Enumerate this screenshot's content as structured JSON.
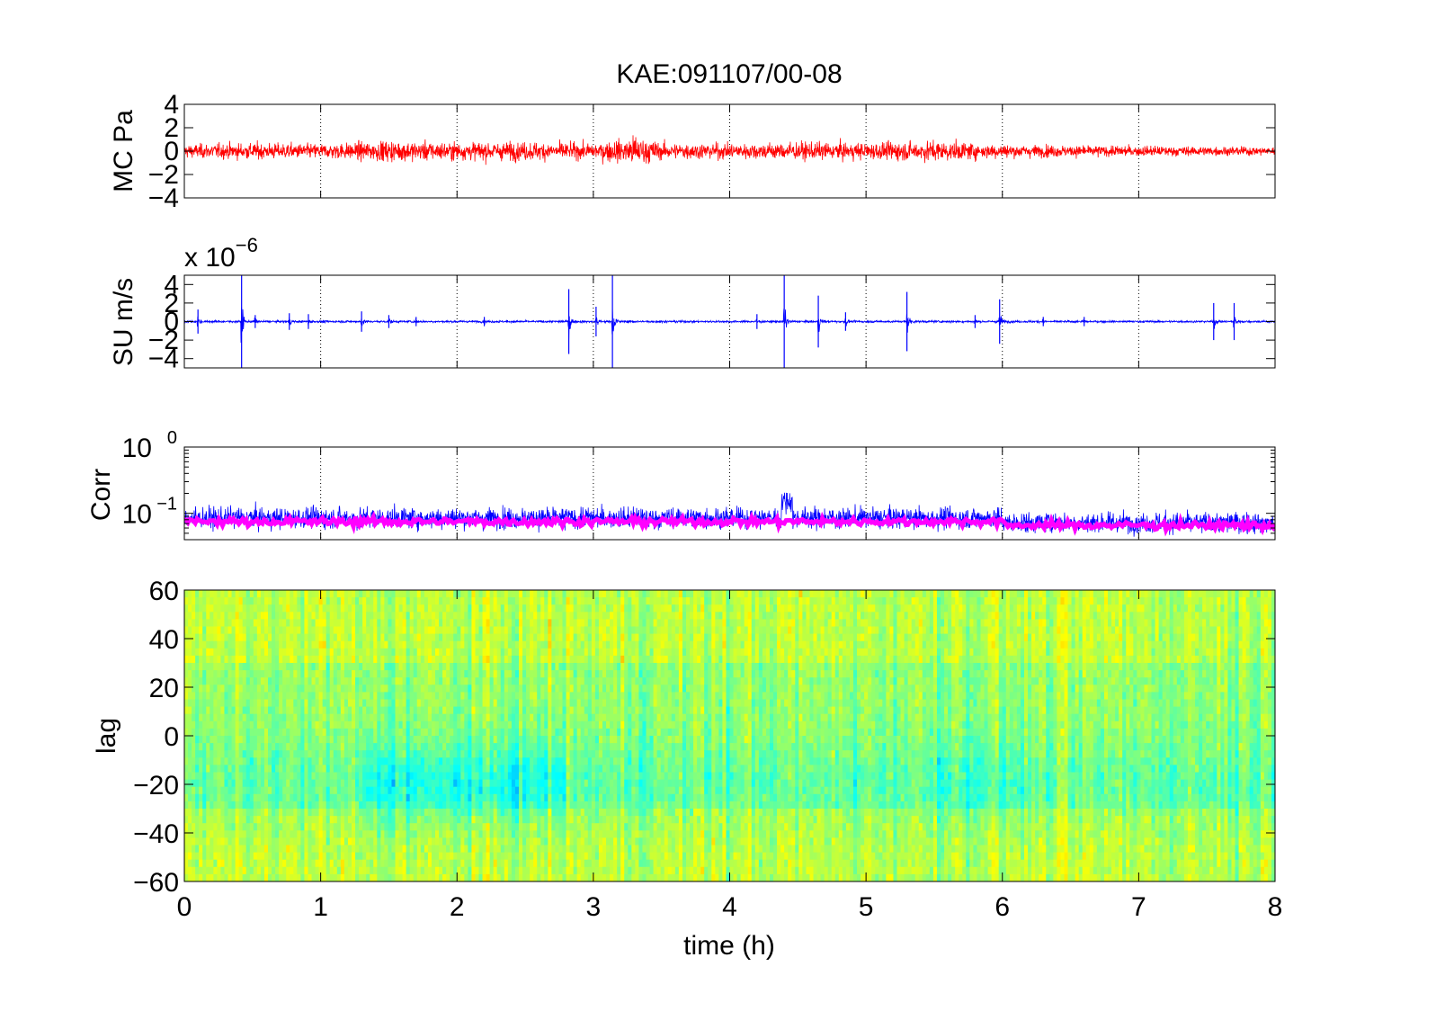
{
  "title": "KAE:091107/00-08",
  "colors": {
    "mc_trace": "#ff0000",
    "su_trace": "#0000ff",
    "corr_trace": "#0000ff",
    "corr_smooth": "#ff00ff",
    "axes": "#000000",
    "grid": "#000000"
  },
  "chart_data": [
    {
      "type": "line",
      "id": "mc",
      "ylabel": "MC Pa",
      "xlim": [
        0,
        8
      ],
      "ylim": [
        -4,
        4
      ],
      "yticks": [
        -4,
        -2,
        0,
        2,
        4
      ],
      "yticklabels": [
        "−4",
        "−2",
        "0",
        "2",
        "4"
      ],
      "xgrid": true,
      "series": [
        {
          "color": "#ff0000",
          "description_of_shape": "continuous noise",
          "x": [
            0,
            0.5,
            1,
            1.5,
            2,
            2.5,
            3,
            3.2,
            3.3,
            3.5,
            4,
            4.5,
            5,
            5.5,
            6,
            6.5,
            7,
            7.5,
            8
          ],
          "envelope": [
            1.3,
            1.6,
            1.4,
            2.0,
            1.7,
            1.8,
            1.5,
            2.3,
            3.1,
            1.6,
            1.5,
            1.7,
            1.6,
            2.0,
            1.3,
            1.1,
            1.0,
            0.9,
            0.8
          ]
        }
      ]
    },
    {
      "type": "line",
      "id": "su",
      "ylabel": "SU m/s",
      "exponent_label": "x 10",
      "exponent": "−6",
      "xlim": [
        0,
        8
      ],
      "ylim": [
        -5,
        5
      ],
      "yticks": [
        -4,
        -2,
        0,
        2,
        4
      ],
      "yticklabels": [
        "−4",
        "−2",
        "0",
        "2",
        "4"
      ],
      "xgrid": true,
      "series": [
        {
          "color": "#0000ff",
          "baseline_noise": 0.12,
          "spikes": [
            {
              "t": 0.1,
              "amp": 1.3
            },
            {
              "t": 0.42,
              "amp": 5.0
            },
            {
              "t": 0.52,
              "amp": 0.7
            },
            {
              "t": 0.77,
              "amp": 0.9
            },
            {
              "t": 0.91,
              "amp": 0.8
            },
            {
              "t": 1.3,
              "amp": 1.1
            },
            {
              "t": 1.5,
              "amp": 0.7
            },
            {
              "t": 1.7,
              "amp": 0.5
            },
            {
              "t": 2.2,
              "amp": 0.5
            },
            {
              "t": 2.82,
              "amp": 3.5
            },
            {
              "t": 3.02,
              "amp": 1.6
            },
            {
              "t": 3.14,
              "amp": 5.0
            },
            {
              "t": 4.2,
              "amp": 0.8
            },
            {
              "t": 4.4,
              "amp": 5.0
            },
            {
              "t": 4.65,
              "amp": 2.8
            },
            {
              "t": 4.85,
              "amp": 1.0
            },
            {
              "t": 5.3,
              "amp": 3.2
            },
            {
              "t": 5.8,
              "amp": 0.7
            },
            {
              "t": 5.98,
              "amp": 2.4
            },
            {
              "t": 6.3,
              "amp": 0.5
            },
            {
              "t": 6.6,
              "amp": 0.5
            },
            {
              "t": 7.55,
              "amp": 2.0
            },
            {
              "t": 7.7,
              "amp": 2.0
            }
          ]
        }
      ]
    },
    {
      "type": "line",
      "id": "corr",
      "ylabel": "Corr",
      "yscale": "log",
      "xlim": [
        0,
        8
      ],
      "ylim": [
        0.04,
        1
      ],
      "yticks": [
        0.1,
        1
      ],
      "yticklabels": [
        {
          "base": "10",
          "exp": "−1"
        },
        {
          "base": "10",
          "exp": "0"
        }
      ],
      "xgrid": true,
      "series": [
        {
          "name": "",
          "color": "#0000ff",
          "style": "raw",
          "level": 0.085
        },
        {
          "name": "",
          "color": "#ff00ff",
          "style": "smoothed",
          "level": 0.075
        }
      ]
    },
    {
      "type": "heatmap",
      "id": "lag",
      "ylabel": "lag",
      "xlabel": "time (h)",
      "xlim": [
        0,
        8
      ],
      "ylim": [
        -60,
        60
      ],
      "xticks": [
        0,
        1,
        2,
        3,
        4,
        5,
        6,
        7,
        8
      ],
      "xticklabels": [
        "0",
        "1",
        "2",
        "3",
        "4",
        "5",
        "6",
        "7",
        "8"
      ],
      "yticks": [
        -60,
        -40,
        -20,
        0,
        20,
        40,
        60
      ],
      "yticklabels": [
        "−60",
        "−40",
        "−20",
        "0",
        "20",
        "40",
        "60"
      ],
      "colormap": "jet",
      "lag_band_low": -20,
      "lag_band_note_values": {
        "center_lag": -18,
        "peak_hours": [
          1.5,
          2.5
        ]
      }
    }
  ]
}
